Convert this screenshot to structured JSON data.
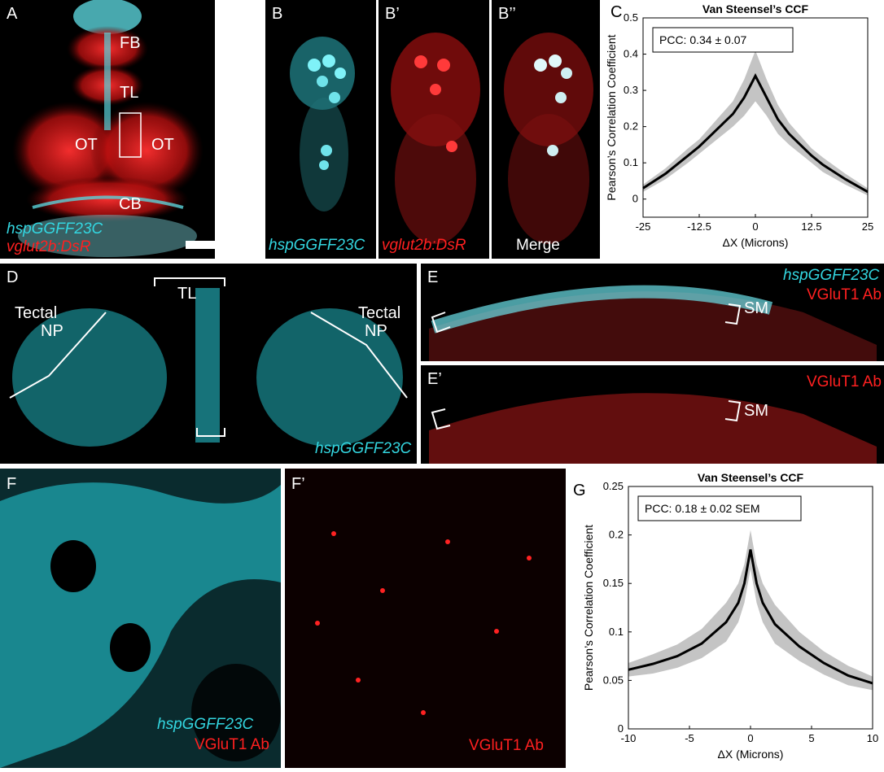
{
  "panel_a": {
    "letter": "A",
    "regions": [
      "FB",
      "TL",
      "OT",
      "OT",
      "CB"
    ],
    "legend_green": "hspGGFF23C",
    "legend_red": "vglut2b:DsR"
  },
  "panel_b": {
    "letter": "B",
    "caption": "hspGGFF23C"
  },
  "panel_b1": {
    "letter": "B’",
    "caption": "vglut2b:DsR"
  },
  "panel_b2": {
    "letter": "B’’",
    "caption": "Merge"
  },
  "panel_d": {
    "letter": "D",
    "tl": "TL",
    "np_left_1": "Tectal",
    "np_left_2": "NP",
    "np_right_1": "Tectal",
    "np_right_2": "NP",
    "caption": "hspGGFF23C"
  },
  "panel_e": {
    "letter": "E",
    "caption_green": "hspGGFF23C",
    "caption_red": "VGluT1 Ab",
    "sm": "SM"
  },
  "panel_e1": {
    "letter": "E’",
    "caption_red": "VGluT1 Ab",
    "sm": "SM"
  },
  "panel_f": {
    "letter": "F",
    "caption_green": "hspGGFF23C",
    "caption_red": "VGluT1 Ab"
  },
  "panel_f1": {
    "letter": "F’",
    "caption_red": "VGluT1 Ab"
  },
  "panel_c": {
    "letter": "C"
  },
  "panel_g": {
    "letter": "G"
  },
  "chart_data": [
    {
      "type": "line",
      "title": "Van Steensel’s CCF",
      "xlabel": "ΔX (Microns)",
      "ylabel": "Pearson’s Correlation Coefficient",
      "annotation": "PCC: 0.34 ± 0.07",
      "xlim": [
        -25,
        25
      ],
      "ylim": [
        -0.05,
        0.5
      ],
      "xticks": [
        "-25",
        "-12.5",
        "0",
        "12.5",
        "25"
      ],
      "yticks": [
        "0",
        "0.1",
        "0.2",
        "0.3",
        "0.4",
        "0.5"
      ],
      "x": [
        -25,
        -20,
        -15,
        -12.5,
        -10,
        -7.5,
        -5,
        -2.5,
        0,
        2.5,
        5,
        7.5,
        10,
        12.5,
        15,
        20,
        25
      ],
      "mean": [
        0.03,
        0.07,
        0.12,
        0.145,
        0.175,
        0.205,
        0.235,
        0.28,
        0.34,
        0.28,
        0.22,
        0.18,
        0.15,
        0.12,
        0.095,
        0.055,
        0.02
      ],
      "sd": [
        0.01,
        0.015,
        0.02,
        0.02,
        0.025,
        0.03,
        0.035,
        0.05,
        0.07,
        0.05,
        0.04,
        0.03,
        0.025,
        0.02,
        0.02,
        0.015,
        0.01
      ],
      "grid": false
    },
    {
      "type": "line",
      "title": "Van Steensel’s CCF",
      "xlabel": "ΔX (Microns)",
      "ylabel": "Pearson’s Correlation Coefficient",
      "annotation": "PCC: 0.18 ± 0.02 SEM",
      "xlim": [
        -10,
        10
      ],
      "ylim": [
        0,
        0.25
      ],
      "xticks": [
        "-10",
        "-5",
        "0",
        "5",
        "10"
      ],
      "yticks": [
        "0",
        "0.05",
        "0.1",
        "0.15",
        "0.2",
        "0.25"
      ],
      "x": [
        -10,
        -8,
        -6,
        -4,
        -2,
        -1,
        -0.5,
        0,
        0.5,
        1,
        2,
        4,
        6,
        8,
        10
      ],
      "mean": [
        0.061,
        0.067,
        0.075,
        0.088,
        0.11,
        0.13,
        0.15,
        0.185,
        0.15,
        0.13,
        0.108,
        0.085,
        0.068,
        0.055,
        0.047
      ],
      "sd": [
        0.007,
        0.01,
        0.012,
        0.015,
        0.02,
        0.02,
        0.02,
        0.02,
        0.02,
        0.02,
        0.02,
        0.015,
        0.012,
        0.01,
        0.007
      ],
      "grid": false
    }
  ]
}
